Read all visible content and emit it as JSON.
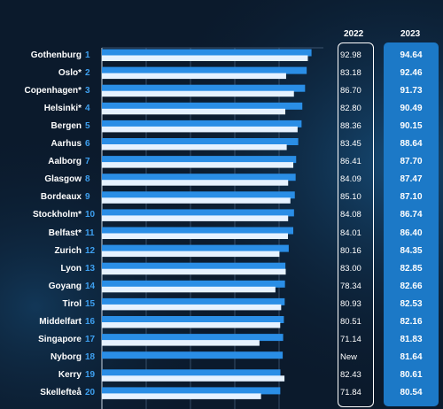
{
  "chart_data": {
    "type": "bar",
    "orientation": "horizontal",
    "title": "",
    "xlabel": "",
    "ylabel": "",
    "xlim": [
      0,
      100
    ],
    "grid": true,
    "legend": "none",
    "column_headers": [
      "2022",
      "2023"
    ],
    "categories": [
      {
        "rank": "1",
        "city": "Gothenburg"
      },
      {
        "rank": "2",
        "city": "Oslo*"
      },
      {
        "rank": "3",
        "city": "Copenhagen*"
      },
      {
        "rank": "4",
        "city": "Helsinki*"
      },
      {
        "rank": "5",
        "city": "Bergen"
      },
      {
        "rank": "6",
        "city": "Aarhus"
      },
      {
        "rank": "7",
        "city": "Aalborg"
      },
      {
        "rank": "8",
        "city": "Glasgow"
      },
      {
        "rank": "9",
        "city": "Bordeaux"
      },
      {
        "rank": "10",
        "city": "Stockholm*"
      },
      {
        "rank": "11",
        "city": "Belfast*"
      },
      {
        "rank": "12",
        "city": "Zurich"
      },
      {
        "rank": "13",
        "city": "Lyon"
      },
      {
        "rank": "14",
        "city": "Goyang"
      },
      {
        "rank": "15",
        "city": "Tirol"
      },
      {
        "rank": "16",
        "city": "Middelfart"
      },
      {
        "rank": "17",
        "city": "Singapore"
      },
      {
        "rank": "18",
        "city": "Nyborg"
      },
      {
        "rank": "19",
        "city": "Kerry"
      },
      {
        "rank": "20",
        "city": "Skellefteå"
      }
    ],
    "series": [
      {
        "values": [
          94.64,
          92.46,
          91.73,
          90.49,
          90.15,
          88.64,
          87.7,
          87.47,
          87.1,
          86.74,
          86.4,
          84.35,
          82.85,
          82.66,
          82.53,
          82.16,
          81.83,
          81.64,
          80.61,
          80.54
        ],
        "labels": [
          "94.64",
          "92.46",
          "91.73",
          "90.49",
          "90.15",
          "88.64",
          "87.70",
          "87.47",
          "87.10",
          "86.74",
          "86.40",
          "84.35",
          "82.85",
          "82.66",
          "82.53",
          "82.16",
          "81.83",
          "81.64",
          "80.61",
          "80.54"
        ]
      },
      {
        "values": [
          92.98,
          83.18,
          86.7,
          82.8,
          88.36,
          83.45,
          86.41,
          84.09,
          85.1,
          84.08,
          84.01,
          80.16,
          83.0,
          78.34,
          80.93,
          80.51,
          71.14,
          null,
          82.43,
          71.84
        ],
        "labels": [
          "92.98",
          "83.18",
          "86.70",
          "82.80",
          "88.36",
          "83.45",
          "86.41",
          "84.09",
          "85.10",
          "84.08",
          "84.01",
          "80.16",
          "83.00",
          "78.34",
          "80.93",
          "80.51",
          "71.14",
          "New",
          "82.43",
          "71.84"
        ]
      }
    ]
  },
  "colors": {
    "background": "#0b1a2c",
    "bar_2023": "#2a8ee6",
    "bar_2022": "#e6f2ff",
    "rank_text": "#3ea0f0",
    "panel_2023": "#1c79c7"
  }
}
